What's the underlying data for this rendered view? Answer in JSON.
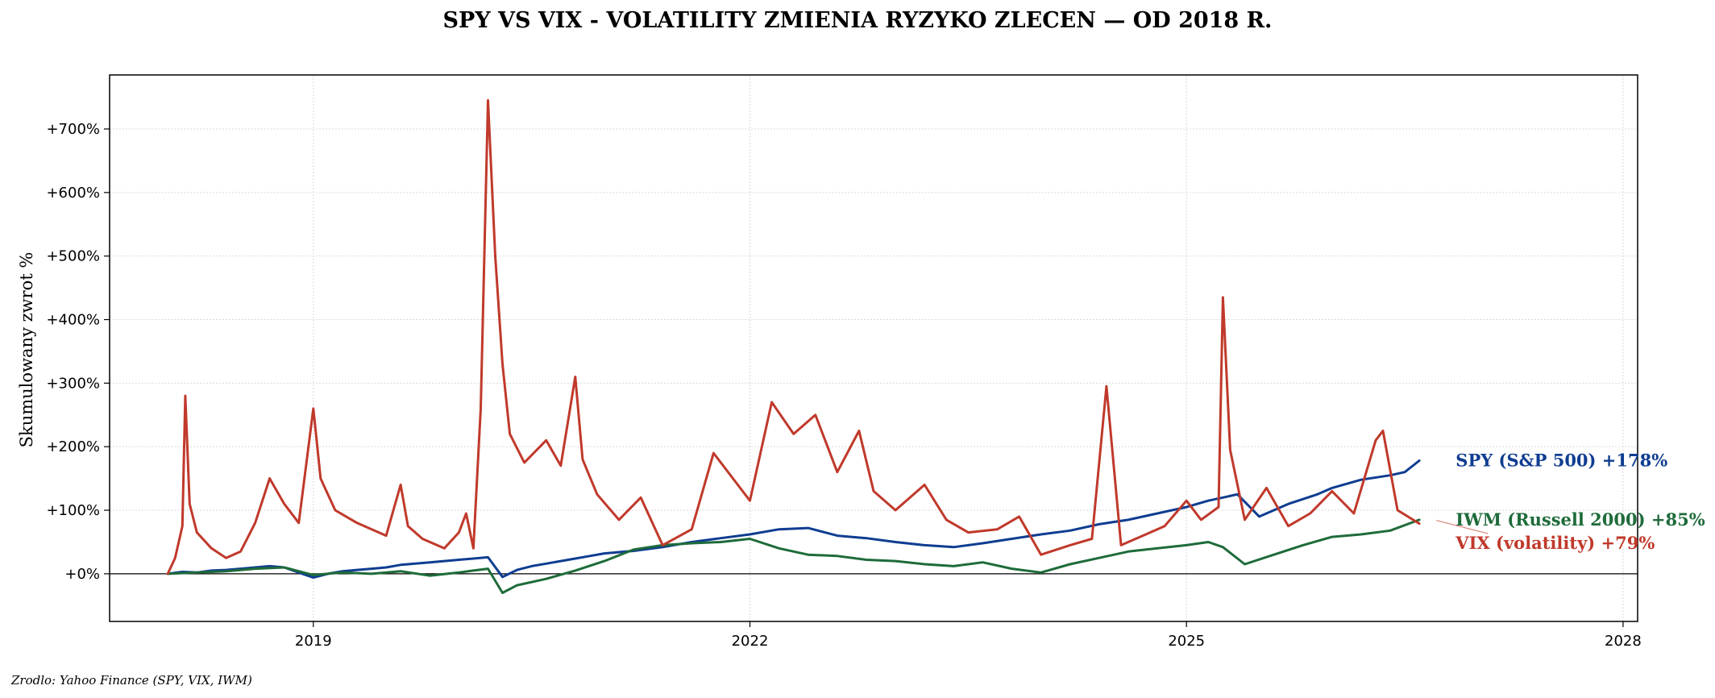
{
  "chart_data": {
    "type": "line",
    "title": "SPY VS VIX - VOLATILITY ZMIENIA RYZYKO ZLECEN — OD 2018 R.",
    "ylabel": "Skumulowany zwrot %",
    "xlabel": "",
    "source": "Zrodlo: Yahoo Finance (SPY, VIX, IWM)",
    "xlim": [
      2017.6,
      2028.1
    ],
    "ylim": [
      -75,
      785
    ],
    "x_ticks": [
      2019,
      2022,
      2025,
      2028
    ],
    "x_tick_labels": [
      "2019",
      "2022",
      "2025",
      "2028"
    ],
    "y_ticks": [
      0,
      100,
      200,
      300,
      400,
      500,
      600,
      700
    ],
    "y_tick_labels": [
      "+0%",
      "+100%",
      "+200%",
      "+300%",
      "+400%",
      "+500%",
      "+600%",
      "+700%"
    ],
    "grid": true,
    "zero_line": true,
    "series": [
      {
        "name": "SPY (S&P 500)",
        "end_label": "SPY (S&P 500)  +178%",
        "color": "#0f3d91",
        "x": [
          2018.0,
          2018.1,
          2018.2,
          2018.3,
          2018.4,
          2018.5,
          2018.6,
          2018.7,
          2018.8,
          2018.9,
          2019.0,
          2019.1,
          2019.2,
          2019.3,
          2019.4,
          2019.5,
          2019.6,
          2019.7,
          2019.8,
          2019.9,
          2020.0,
          2020.1,
          2020.2,
          2020.3,
          2020.4,
          2020.5,
          2020.6,
          2020.7,
          2020.8,
          2020.9,
          2021.0,
          2021.2,
          2021.4,
          2021.6,
          2021.8,
          2022.0,
          2022.2,
          2022.4,
          2022.6,
          2022.8,
          2023.0,
          2023.2,
          2023.4,
          2023.6,
          2023.8,
          2024.0,
          2024.2,
          2024.4,
          2024.6,
          2024.8,
          2025.0,
          2025.15,
          2025.25,
          2025.35,
          2025.5,
          2025.7,
          2025.9,
          2026.0,
          2026.2,
          2026.4,
          2026.5,
          2026.6
        ],
        "y": [
          0,
          3,
          2,
          5,
          6,
          8,
          10,
          12,
          10,
          2,
          -6,
          0,
          4,
          6,
          8,
          10,
          14,
          16,
          18,
          20,
          22,
          24,
          26,
          -5,
          6,
          12,
          16,
          20,
          24,
          28,
          32,
          36,
          42,
          50,
          56,
          62,
          70,
          72,
          60,
          56,
          50,
          45,
          42,
          48,
          55,
          62,
          68,
          78,
          85,
          95,
          105,
          115,
          120,
          125,
          90,
          110,
          125,
          135,
          148,
          155,
          160,
          178
        ]
      },
      {
        "name": "IWM (Russell 2000)",
        "end_label": "IWM (Russell 2000)  +85%",
        "color": "#1e6b3a",
        "x": [
          2018.0,
          2018.2,
          2018.4,
          2018.6,
          2018.8,
          2019.0,
          2019.2,
          2019.4,
          2019.6,
          2019.8,
          2020.0,
          2020.1,
          2020.2,
          2020.3,
          2020.4,
          2020.6,
          2020.8,
          2021.0,
          2021.2,
          2021.4,
          2021.6,
          2021.8,
          2022.0,
          2022.2,
          2022.4,
          2022.6,
          2022.8,
          2023.0,
          2023.2,
          2023.4,
          2023.6,
          2023.8,
          2024.0,
          2024.2,
          2024.4,
          2024.6,
          2024.8,
          2025.0,
          2025.15,
          2025.25,
          2025.4,
          2025.6,
          2025.8,
          2026.0,
          2026.2,
          2026.4,
          2026.6
        ],
        "y": [
          0,
          2,
          4,
          8,
          10,
          -2,
          2,
          0,
          4,
          -3,
          2,
          5,
          8,
          -30,
          -18,
          -8,
          5,
          20,
          38,
          45,
          48,
          50,
          55,
          40,
          30,
          28,
          22,
          20,
          15,
          12,
          18,
          8,
          2,
          15,
          25,
          35,
          40,
          45,
          50,
          42,
          15,
          30,
          45,
          58,
          62,
          68,
          85
        ]
      },
      {
        "name": "VIX (volatility)",
        "end_label": "VIX (volatility)  +79%",
        "color": "#c0392b",
        "x": [
          2018.0,
          2018.05,
          2018.1,
          2018.12,
          2018.15,
          2018.2,
          2018.3,
          2018.4,
          2018.5,
          2018.6,
          2018.7,
          2018.8,
          2018.9,
          2019.0,
          2019.05,
          2019.15,
          2019.3,
          2019.5,
          2019.6,
          2019.65,
          2019.75,
          2019.9,
          2020.0,
          2020.05,
          2020.1,
          2020.15,
          2020.2,
          2020.25,
          2020.3,
          2020.35,
          2020.45,
          2020.6,
          2020.7,
          2020.8,
          2020.85,
          2020.95,
          2021.1,
          2021.25,
          2021.4,
          2021.6,
          2021.75,
          2021.9,
          2022.0,
          2022.15,
          2022.3,
          2022.45,
          2022.6,
          2022.75,
          2022.85,
          2023.0,
          2023.2,
          2023.35,
          2023.5,
          2023.7,
          2023.85,
          2024.0,
          2024.2,
          2024.35,
          2024.45,
          2024.55,
          2024.7,
          2024.85,
          2025.0,
          2025.1,
          2025.22,
          2025.25,
          2025.3,
          2025.4,
          2025.55,
          2025.7,
          2025.85,
          2026.0,
          2026.15,
          2026.3,
          2026.35,
          2026.45,
          2026.6
        ],
        "y": [
          0,
          25,
          75,
          280,
          110,
          65,
          40,
          25,
          35,
          80,
          150,
          110,
          80,
          260,
          150,
          100,
          80,
          60,
          140,
          75,
          55,
          40,
          65,
          95,
          40,
          260,
          745,
          500,
          330,
          220,
          175,
          210,
          170,
          310,
          180,
          125,
          85,
          120,
          45,
          70,
          190,
          145,
          115,
          270,
          220,
          250,
          160,
          225,
          130,
          100,
          140,
          85,
          65,
          70,
          90,
          30,
          45,
          55,
          295,
          45,
          60,
          75,
          115,
          85,
          105,
          435,
          195,
          85,
          135,
          75,
          95,
          130,
          95,
          210,
          225,
          100,
          79
        ]
      }
    ],
    "end_labels": {
      "x": 2026.85,
      "y": [
        178,
        85,
        48
      ]
    }
  }
}
